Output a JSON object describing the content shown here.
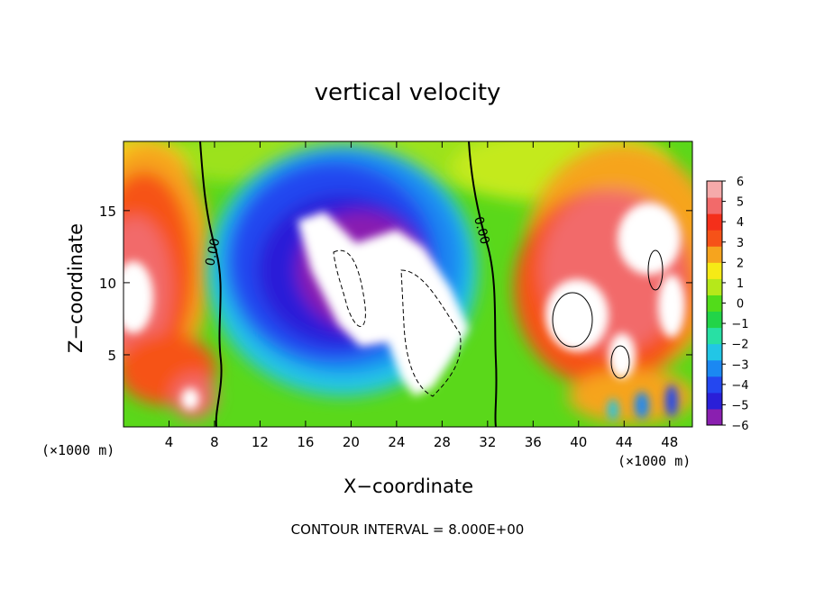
{
  "chart_data": {
    "type": "heatmap",
    "title": "vertical velocity",
    "xlabel": "X−coordinate",
    "ylabel": "Z−coordinate",
    "x_unit_label": "(×1000 m)",
    "footer": "CONTOUR INTERVAL = 8.000E+00",
    "x_ticks": [
      4,
      8,
      12,
      16,
      20,
      24,
      28,
      32,
      36,
      40,
      44,
      48
    ],
    "y_ticks": [
      5,
      10,
      15
    ],
    "xlim": [
      0,
      50
    ],
    "ylim": [
      0,
      19.8
    ],
    "colorbar": {
      "ticks": [
        "6",
        "5",
        "4",
        "3",
        "2",
        "1",
        "0",
        "−1",
        "−2",
        "−3",
        "−4",
        "−5",
        "−6"
      ],
      "range": [
        -6,
        6
      ],
      "colors": [
        "#8a1fb0",
        "#2a1fd8",
        "#2447f0",
        "#1b88f2",
        "#22c6e6",
        "#28e0a4",
        "#22d448",
        "#52dc1a",
        "#b6e81a",
        "#f6ea16",
        "#f6a41e",
        "#f65218",
        "#f42f1a",
        "#f26a6a",
        "#f5aaaa"
      ],
      "above_range_color": "#ffffff"
    },
    "contour_labels": [
      "0.00",
      "0.00"
    ],
    "features": [
      {
        "kind": "updraft",
        "x_center": 2,
        "z_center": 10,
        "peak_w": 7
      },
      {
        "kind": "downdraft",
        "x_center": 21,
        "z_center": 10,
        "peak_w": -8
      },
      {
        "kind": "updraft",
        "x_center": 43,
        "z_center": 10,
        "peak_w": 7
      }
    ]
  }
}
